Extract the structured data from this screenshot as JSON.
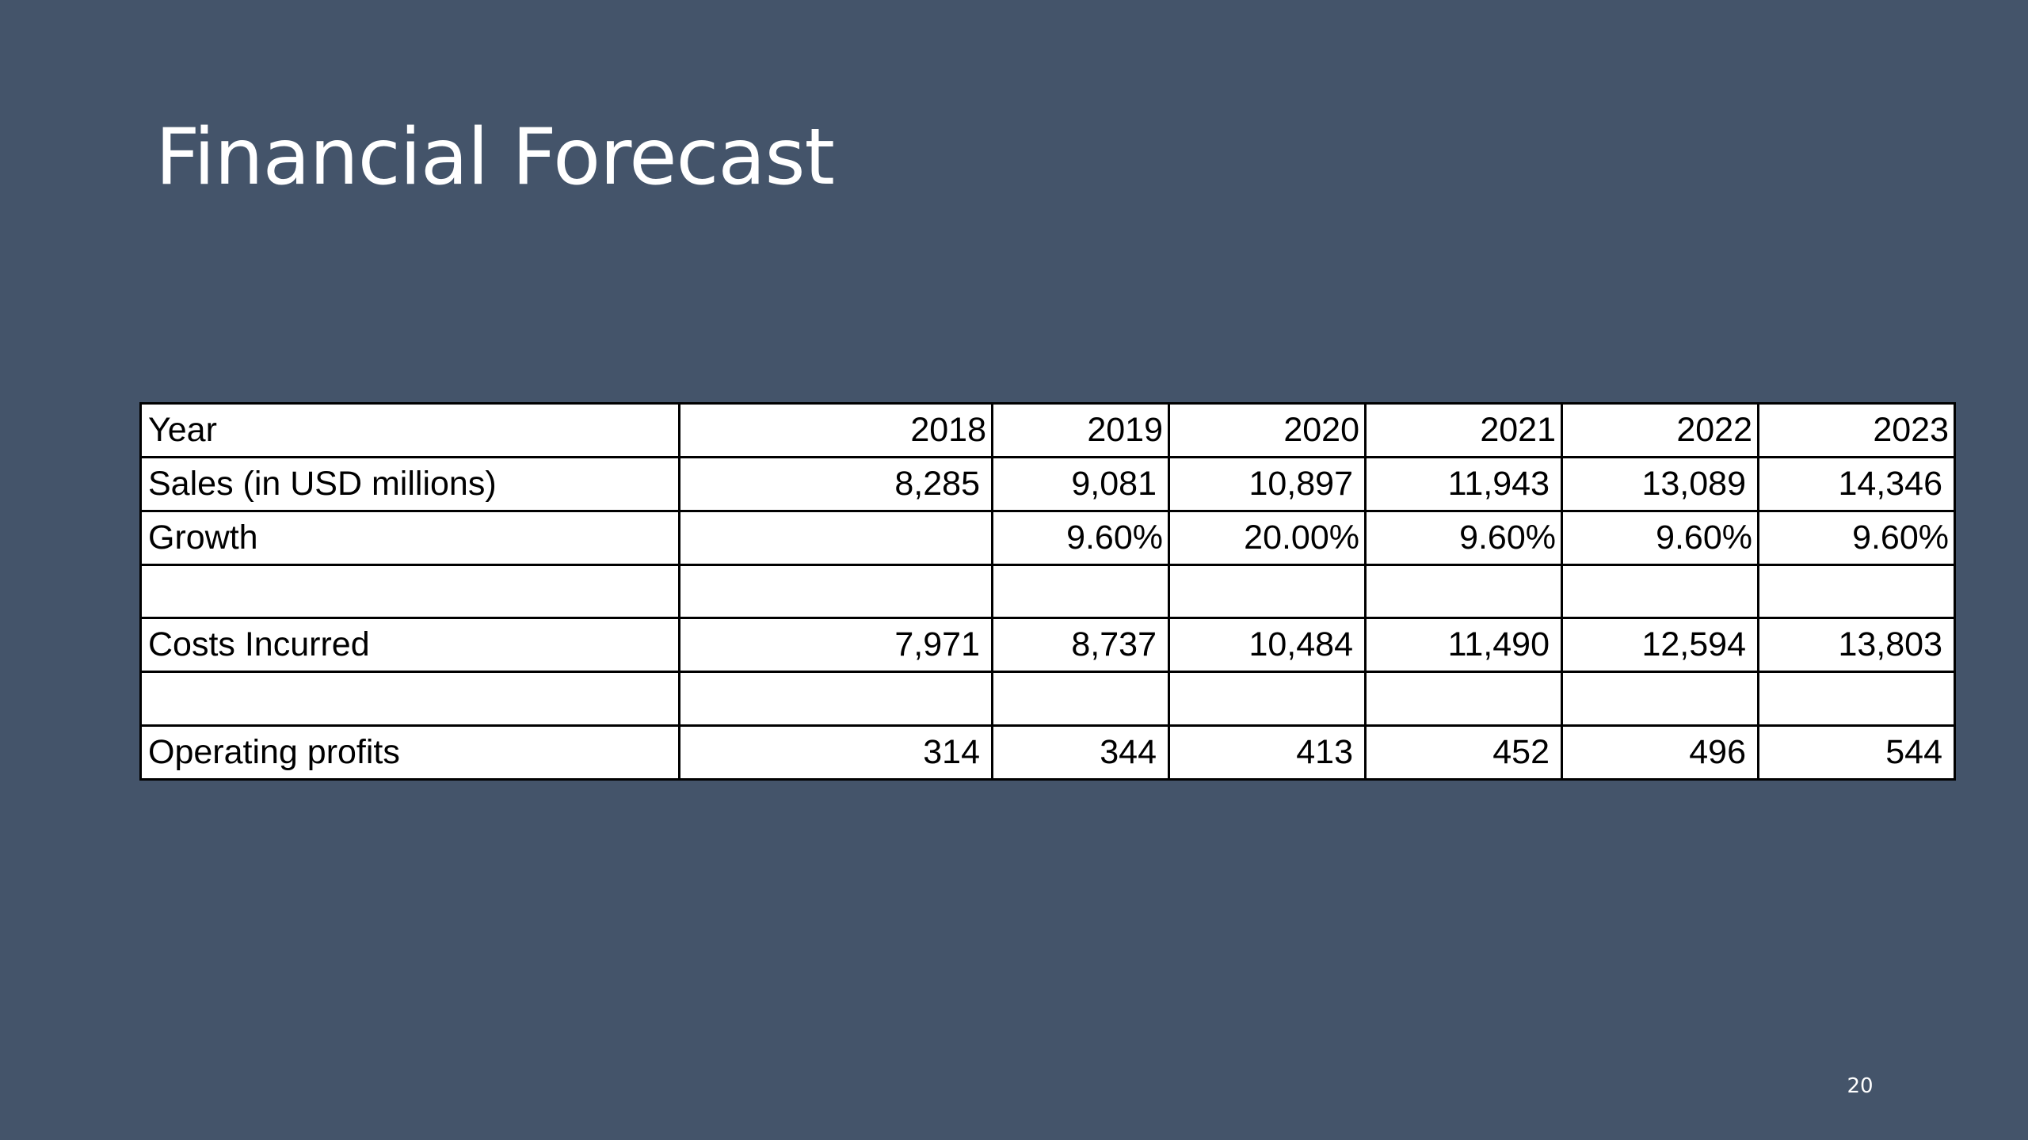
{
  "slide": {
    "title": "Financial Forecast",
    "page_number": "20"
  },
  "table": {
    "rows": [
      {
        "label": "Year",
        "values": [
          "2018",
          "2019",
          "2020",
          "2021",
          "2022",
          "2023"
        ]
      },
      {
        "label": "Sales (in USD millions)",
        "values": [
          "8,285",
          "9,081",
          "10,897",
          "11,943",
          "13,089",
          "14,346"
        ]
      },
      {
        "label": "Growth",
        "values": [
          "",
          "9.60%",
          "20.00%",
          "9.60%",
          "9.60%",
          "9.60%"
        ]
      },
      {
        "label": "",
        "values": [
          "",
          "",
          "",
          "",
          "",
          ""
        ]
      },
      {
        "label": "Costs Incurred",
        "values": [
          "7,971",
          "8,737",
          "10,484",
          "11,490",
          "12,594",
          "13,803"
        ]
      },
      {
        "label": "",
        "values": [
          "",
          "",
          "",
          "",
          "",
          ""
        ]
      },
      {
        "label": "Operating profits",
        "values": [
          "314",
          "344",
          "413",
          "452",
          "496",
          "544"
        ]
      }
    ]
  }
}
